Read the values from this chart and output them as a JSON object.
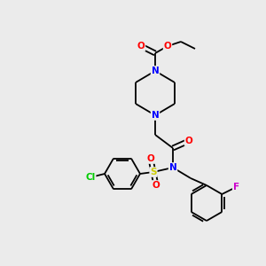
{
  "bg_color": "#ebebeb",
  "bond_color": "#000000",
  "atom_colors": {
    "O": "#ff0000",
    "N": "#0000ff",
    "S": "#cccc00",
    "Cl": "#00cc00",
    "F": "#cc00cc",
    "C": "#000000"
  },
  "figsize": [
    3.0,
    3.0
  ],
  "dpi": 100
}
